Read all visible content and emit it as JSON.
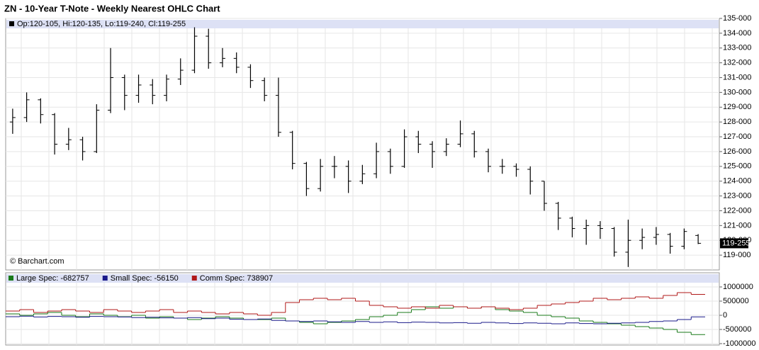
{
  "chart_data": [
    {
      "type": "ohlc",
      "title": "ZN - 10-Year T-Note - Weekly Nearest OHLC Chart",
      "info": "Op:120-105, Hi:120-135, Lo:119-240, Cl:119-255",
      "watermark": "© Barchart.com",
      "last_label": "119-255",
      "color": "#000000",
      "grid": true,
      "ylim": [
        118,
        135
      ],
      "yticks": [
        {
          "value": 119,
          "label": "119-000"
        },
        {
          "value": 120,
          "label": "120-000"
        },
        {
          "value": 121,
          "label": "121-000"
        },
        {
          "value": 122,
          "label": "122-000"
        },
        {
          "value": 123,
          "label": "123-000"
        },
        {
          "value": 124,
          "label": "124-000"
        },
        {
          "value": 125,
          "label": "125-000"
        },
        {
          "value": 126,
          "label": "126-000"
        },
        {
          "value": 127,
          "label": "127-000"
        },
        {
          "value": 128,
          "label": "128-000"
        },
        {
          "value": 129,
          "label": "129-000"
        },
        {
          "value": 130,
          "label": "130-000"
        },
        {
          "value": 131,
          "label": "131-000"
        },
        {
          "value": 132,
          "label": "132-000"
        },
        {
          "value": 133,
          "label": "133-000"
        },
        {
          "value": 134,
          "label": "134-000"
        },
        {
          "value": 135,
          "label": "135-000"
        }
      ],
      "open": [
        128.0,
        128.3,
        129.5,
        128.5,
        126.5,
        126.8,
        126,
        128.8,
        131,
        129.8,
        130.5,
        129.8,
        130.9,
        131.5,
        133.8,
        132,
        132.3,
        131.7,
        130.8,
        129.8,
        127.3,
        125.2,
        123.5,
        125,
        125,
        124,
        124.5,
        126,
        125,
        127,
        126.5,
        126,
        126.5,
        127.2,
        126,
        125,
        125,
        124.8,
        124,
        122.5,
        121.5,
        120.8,
        121,
        120.8,
        119.2,
        120,
        120.2,
        120.4,
        119.6,
        120.33
      ],
      "high": [
        128.9,
        130.0,
        129.6,
        128.6,
        127.6,
        127.0,
        129.2,
        133.0,
        131.2,
        131.2,
        130.9,
        131.2,
        132.3,
        134.4,
        134.3,
        133.0,
        132.7,
        131.9,
        131.0,
        131.0,
        127.4,
        125.3,
        125.5,
        125.7,
        125.4,
        125.1,
        126.6,
        126.2,
        127.5,
        127.4,
        126.7,
        126.9,
        128.1,
        127.4,
        126.2,
        125.5,
        125.2,
        125.0,
        124.0,
        122.6,
        121.6,
        121.4,
        121.3,
        120.9,
        121.4,
        120.8,
        120.9,
        120.5,
        120.8,
        120.42
      ],
      "low": [
        127.2,
        128.0,
        127.9,
        125.8,
        126.1,
        125.4,
        125.9,
        128.6,
        128.8,
        129.3,
        129.2,
        129.4,
        130.5,
        131.3,
        131.6,
        131.7,
        131.3,
        130.3,
        129.4,
        127.0,
        124.8,
        123.0,
        123.3,
        124.2,
        123.2,
        123.8,
        124.2,
        124.5,
        124.9,
        125.9,
        124.9,
        125.7,
        126.3,
        125.6,
        124.6,
        124.5,
        124.3,
        123.1,
        122.0,
        120.7,
        120.2,
        119.7,
        120.1,
        118.9,
        118.2,
        119.4,
        119.7,
        119.1,
        119.4,
        119.75
      ],
      "close": [
        128.3,
        129.5,
        128.5,
        126.5,
        126.8,
        126,
        128.8,
        131,
        129.8,
        130.5,
        129.8,
        130.9,
        131.5,
        133.8,
        132,
        132.3,
        131.7,
        130.8,
        129.8,
        127.3,
        125.2,
        123.5,
        125,
        125,
        124,
        124.5,
        126,
        125,
        127,
        126.5,
        126,
        126.5,
        127.2,
        126,
        125,
        125,
        124.8,
        124,
        122.5,
        121.5,
        120.8,
        121,
        120.8,
        119.2,
        120,
        120.2,
        120.4,
        119.6,
        120.6,
        119.8
      ]
    },
    {
      "type": "step",
      "grid": true,
      "ylim": [
        -1000000,
        1000000
      ],
      "yticks": [
        -1000000,
        -500000,
        0,
        500000,
        1000000
      ],
      "series": [
        {
          "name": "Large Spec: -682757",
          "color": "#1a7a1a",
          "values": [
            50000,
            0,
            50000,
            100000,
            0,
            -50000,
            50000,
            0,
            -50000,
            0,
            -100000,
            -50000,
            -100000,
            -150000,
            -100000,
            -50000,
            -100000,
            -150000,
            -150000,
            -100000,
            -200000,
            -250000,
            -300000,
            -250000,
            -200000,
            -150000,
            -50000,
            0,
            100000,
            200000,
            300000,
            250000,
            300000,
            250000,
            300000,
            200000,
            150000,
            100000,
            0,
            -50000,
            -100000,
            -200000,
            -250000,
            -300000,
            -350000,
            -400000,
            -450000,
            -500000,
            -600000,
            -682757
          ]
        },
        {
          "name": "Small Spec: -56150",
          "color": "#1a1a8a",
          "values": [
            -50000,
            -30000,
            -60000,
            -40000,
            -50000,
            -70000,
            -40000,
            -50000,
            -60000,
            -80000,
            -70000,
            -90000,
            -100000,
            -80000,
            -120000,
            -100000,
            -140000,
            -150000,
            -130000,
            -180000,
            -200000,
            -220000,
            -200000,
            -230000,
            -250000,
            -220000,
            -250000,
            -230000,
            -260000,
            -240000,
            -250000,
            -270000,
            -260000,
            -280000,
            -250000,
            -270000,
            -290000,
            -270000,
            -280000,
            -300000,
            -270000,
            -290000,
            -300000,
            -280000,
            -270000,
            -250000,
            -220000,
            -200000,
            -150000,
            -56150
          ]
        },
        {
          "name": "Comm Spec: 738907",
          "color": "#b01818",
          "values": [
            150000,
            200000,
            100000,
            150000,
            200000,
            150000,
            100000,
            200000,
            150000,
            100000,
            150000,
            200000,
            100000,
            150000,
            100000,
            50000,
            100000,
            50000,
            0,
            100000,
            450000,
            550000,
            600000,
            550000,
            600000,
            500000,
            350000,
            300000,
            250000,
            300000,
            250000,
            350000,
            300000,
            250000,
            300000,
            250000,
            200000,
            250000,
            350000,
            400000,
            450000,
            500000,
            600000,
            550000,
            600000,
            650000,
            600000,
            700000,
            800000,
            738907
          ]
        }
      ]
    }
  ]
}
